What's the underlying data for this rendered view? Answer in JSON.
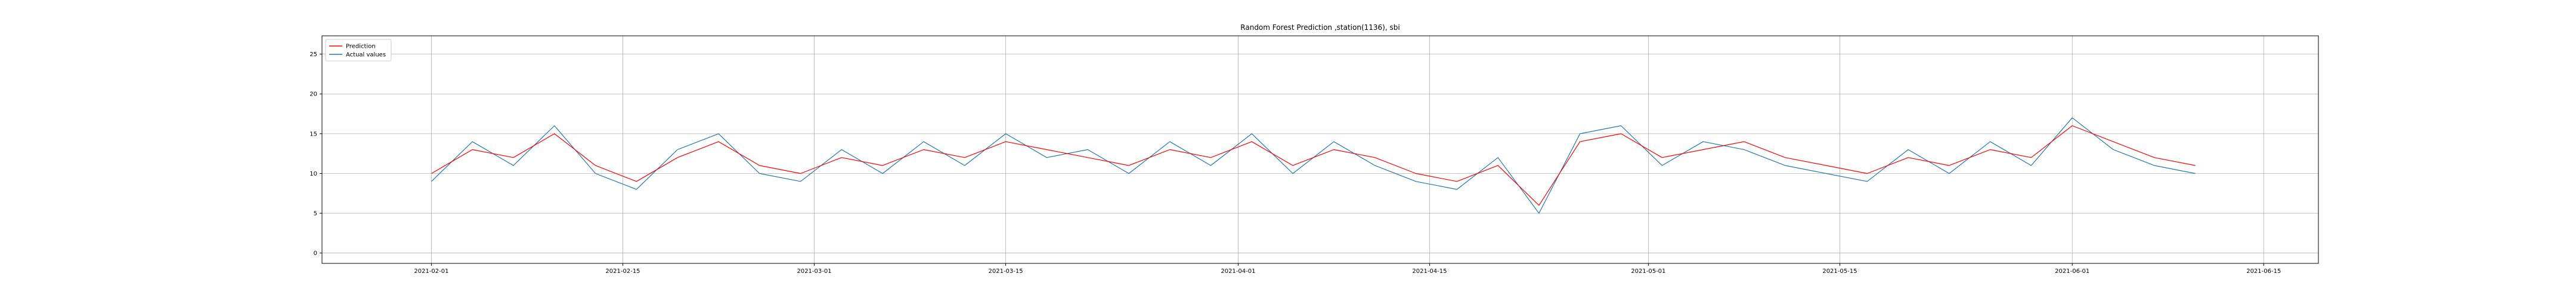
{
  "chart_data": {
    "type": "line",
    "title": "Random Forest Prediction ,station(1136), sbi",
    "xlabel": "",
    "ylabel": "",
    "x_range": [
      "2021-01-24",
      "2021-06-19"
    ],
    "ylim": [
      -1.3,
      27.3
    ],
    "grid": true,
    "legend_position": "top-left",
    "x_ticks": [
      "2021-02-01",
      "2021-02-15",
      "2021-03-01",
      "2021-03-15",
      "2021-04-01",
      "2021-04-15",
      "2021-05-01",
      "2021-05-15",
      "2021-06-01",
      "2021-06-15"
    ],
    "y_ticks": [
      0,
      5,
      10,
      15,
      20,
      25
    ],
    "colors": {
      "prediction": "#ff0000",
      "actual": "#1f77b4"
    },
    "series": [
      {
        "name": "Prediction",
        "x": [
          "2021-02-01",
          "2021-02-04",
          "2021-02-07",
          "2021-02-10",
          "2021-02-13",
          "2021-02-16",
          "2021-02-19",
          "2021-02-22",
          "2021-02-25",
          "2021-02-28",
          "2021-03-03",
          "2021-03-06",
          "2021-03-09",
          "2021-03-12",
          "2021-03-15",
          "2021-03-18",
          "2021-03-21",
          "2021-03-24",
          "2021-03-27",
          "2021-03-30",
          "2021-04-02",
          "2021-04-05",
          "2021-04-08",
          "2021-04-11",
          "2021-04-14",
          "2021-04-17",
          "2021-04-20",
          "2021-04-23",
          "2021-04-26",
          "2021-04-29",
          "2021-05-02",
          "2021-05-05",
          "2021-05-08",
          "2021-05-11",
          "2021-05-14",
          "2021-05-17",
          "2021-05-20",
          "2021-05-23",
          "2021-05-26",
          "2021-05-29",
          "2021-06-01",
          "2021-06-04",
          "2021-06-07",
          "2021-06-10"
        ],
        "values": [
          10,
          13,
          12,
          15,
          11,
          9,
          12,
          14,
          11,
          10,
          12,
          11,
          13,
          12,
          14,
          13,
          12,
          11,
          13,
          12,
          14,
          11,
          13,
          12,
          10,
          9,
          11,
          6,
          14,
          15,
          12,
          13,
          14,
          12,
          11,
          10,
          12,
          11,
          13,
          12,
          16,
          14,
          12,
          11
        ]
      },
      {
        "name": "Actual values",
        "x": [
          "2021-02-01",
          "2021-02-04",
          "2021-02-07",
          "2021-02-10",
          "2021-02-13",
          "2021-02-16",
          "2021-02-19",
          "2021-02-22",
          "2021-02-25",
          "2021-02-28",
          "2021-03-03",
          "2021-03-06",
          "2021-03-09",
          "2021-03-12",
          "2021-03-15",
          "2021-03-18",
          "2021-03-21",
          "2021-03-24",
          "2021-03-27",
          "2021-03-30",
          "2021-04-02",
          "2021-04-05",
          "2021-04-08",
          "2021-04-11",
          "2021-04-14",
          "2021-04-17",
          "2021-04-20",
          "2021-04-23",
          "2021-04-26",
          "2021-04-29",
          "2021-05-02",
          "2021-05-05",
          "2021-05-08",
          "2021-05-11",
          "2021-05-14",
          "2021-05-17",
          "2021-05-20",
          "2021-05-23",
          "2021-05-26",
          "2021-05-29",
          "2021-06-01",
          "2021-06-04",
          "2021-06-07",
          "2021-06-10"
        ],
        "values": [
          9,
          14,
          11,
          16,
          10,
          8,
          13,
          15,
          10,
          9,
          13,
          10,
          14,
          11,
          15,
          12,
          13,
          10,
          14,
          11,
          15,
          10,
          14,
          11,
          9,
          8,
          12,
          5,
          15,
          16,
          11,
          14,
          13,
          11,
          10,
          9,
          13,
          10,
          14,
          11,
          17,
          13,
          11,
          10
        ]
      }
    ]
  }
}
